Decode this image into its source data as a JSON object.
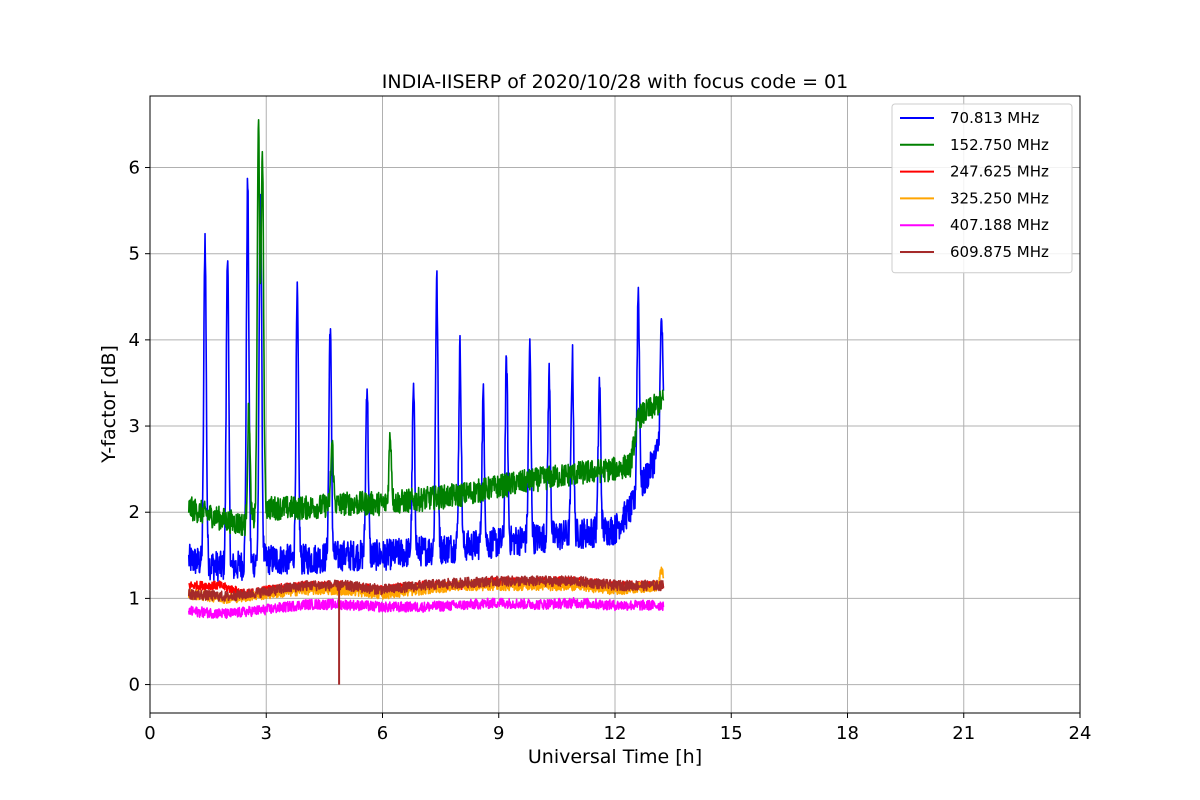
{
  "chart_data": {
    "type": "line",
    "title": "INDIA-IISERP of 2020/10/28 with focus code = 01",
    "xlabel": "Universal Time [h]",
    "ylabel": "Y-factor [dB]",
    "xlim": [
      0,
      24
    ],
    "ylim": [
      -0.33,
      6.83
    ],
    "xticks": [
      0,
      3,
      6,
      9,
      12,
      15,
      18,
      21,
      24
    ],
    "yticks": [
      0,
      1,
      2,
      3,
      4,
      5,
      6
    ],
    "grid": true,
    "legend_position": "top-right",
    "series": [
      {
        "name": " 70.813 MHz",
        "color": "#0000ff",
        "base": [
          [
            1.0,
            1.45
          ],
          [
            2.0,
            1.35
          ],
          [
            3.0,
            1.45
          ],
          [
            4.0,
            1.45
          ],
          [
            5.0,
            1.5
          ],
          [
            6.0,
            1.5
          ],
          [
            7.0,
            1.55
          ],
          [
            8.0,
            1.6
          ],
          [
            9.0,
            1.65
          ],
          [
            10.0,
            1.7
          ],
          [
            11.0,
            1.75
          ],
          [
            12.0,
            1.8
          ],
          [
            12.5,
            2.1
          ],
          [
            13.0,
            2.6
          ],
          [
            13.25,
            2.9
          ]
        ],
        "noise": 0.18,
        "spikes": [
          [
            1.42,
            5.2
          ],
          [
            2.0,
            5.05
          ],
          [
            2.52,
            5.82
          ],
          [
            2.85,
            5.8
          ],
          [
            3.8,
            4.5
          ],
          [
            4.65,
            4.18
          ],
          [
            5.6,
            3.5
          ],
          [
            6.8,
            3.4
          ],
          [
            7.4,
            4.7
          ],
          [
            8.0,
            3.9
          ],
          [
            8.6,
            3.35
          ],
          [
            9.2,
            3.75
          ],
          [
            9.8,
            3.9
          ],
          [
            10.3,
            3.6
          ],
          [
            10.9,
            3.8
          ],
          [
            11.6,
            3.5
          ],
          [
            12.6,
            4.58
          ],
          [
            13.2,
            4.25
          ]
        ]
      },
      {
        "name": "152.750 MHz",
        "color": "#008000",
        "base": [
          [
            1.0,
            2.05
          ],
          [
            2.0,
            1.9
          ],
          [
            2.5,
            1.85
          ],
          [
            3.0,
            2.05
          ],
          [
            4.0,
            2.05
          ],
          [
            5.0,
            2.1
          ],
          [
            6.0,
            2.1
          ],
          [
            7.0,
            2.15
          ],
          [
            8.0,
            2.2
          ],
          [
            9.0,
            2.3
          ],
          [
            10.0,
            2.38
          ],
          [
            11.0,
            2.45
          ],
          [
            12.0,
            2.5
          ],
          [
            12.4,
            2.55
          ],
          [
            12.6,
            3.1
          ],
          [
            13.25,
            3.3
          ]
        ],
        "noise": 0.14,
        "spikes": [
          [
            2.8,
            6.48
          ],
          [
            2.9,
            6.2
          ],
          [
            2.55,
            3.2
          ],
          [
            4.7,
            2.8
          ],
          [
            6.2,
            2.9
          ]
        ]
      },
      {
        "name": "247.625 MHz",
        "color": "#ff0000",
        "base": [
          [
            1.0,
            1.15
          ],
          [
            1.8,
            1.15
          ],
          [
            2.5,
            1.05
          ],
          [
            3.0,
            1.1
          ],
          [
            4.0,
            1.15
          ],
          [
            5.0,
            1.15
          ],
          [
            6.0,
            1.1
          ],
          [
            7.0,
            1.15
          ],
          [
            8.0,
            1.15
          ],
          [
            9.0,
            1.2
          ],
          [
            10.0,
            1.2
          ],
          [
            11.0,
            1.2
          ],
          [
            12.0,
            1.15
          ],
          [
            13.25,
            1.15
          ]
        ],
        "noise": 0.05,
        "spikes": []
      },
      {
        "name": "325.250 MHz",
        "color": "#ffa500",
        "base": [
          [
            1.0,
            1.05
          ],
          [
            2.0,
            1.0
          ],
          [
            3.0,
            1.05
          ],
          [
            4.0,
            1.1
          ],
          [
            5.0,
            1.1
          ],
          [
            6.0,
            1.05
          ],
          [
            7.0,
            1.1
          ],
          [
            8.0,
            1.15
          ],
          [
            9.0,
            1.15
          ],
          [
            10.0,
            1.15
          ],
          [
            11.0,
            1.15
          ],
          [
            12.0,
            1.1
          ],
          [
            13.25,
            1.15
          ]
        ],
        "noise": 0.06,
        "spikes": [
          [
            13.2,
            1.35
          ]
        ]
      },
      {
        "name": "407.188 MHz",
        "color": "#ff00ff",
        "base": [
          [
            1.0,
            0.85
          ],
          [
            2.0,
            0.82
          ],
          [
            3.0,
            0.87
          ],
          [
            4.0,
            0.93
          ],
          [
            5.0,
            0.93
          ],
          [
            6.0,
            0.9
          ],
          [
            7.0,
            0.9
          ],
          [
            8.0,
            0.92
          ],
          [
            9.0,
            0.95
          ],
          [
            10.0,
            0.93
          ],
          [
            11.0,
            0.95
          ],
          [
            12.0,
            0.92
          ],
          [
            13.25,
            0.92
          ]
        ],
        "noise": 0.06,
        "spikes": []
      },
      {
        "name": "609.875 MHz",
        "color": "#a52a2a",
        "base": [
          [
            1.0,
            1.05
          ],
          [
            2.0,
            1.02
          ],
          [
            3.0,
            1.08
          ],
          [
            4.0,
            1.15
          ],
          [
            5.0,
            1.15
          ],
          [
            6.0,
            1.1
          ],
          [
            7.0,
            1.15
          ],
          [
            8.0,
            1.18
          ],
          [
            9.0,
            1.2
          ],
          [
            10.0,
            1.2
          ],
          [
            11.0,
            1.2
          ],
          [
            12.0,
            1.15
          ],
          [
            13.25,
            1.15
          ]
        ],
        "noise": 0.06,
        "spikes": [],
        "dip": [
          4.88,
          0.0
        ]
      }
    ]
  }
}
